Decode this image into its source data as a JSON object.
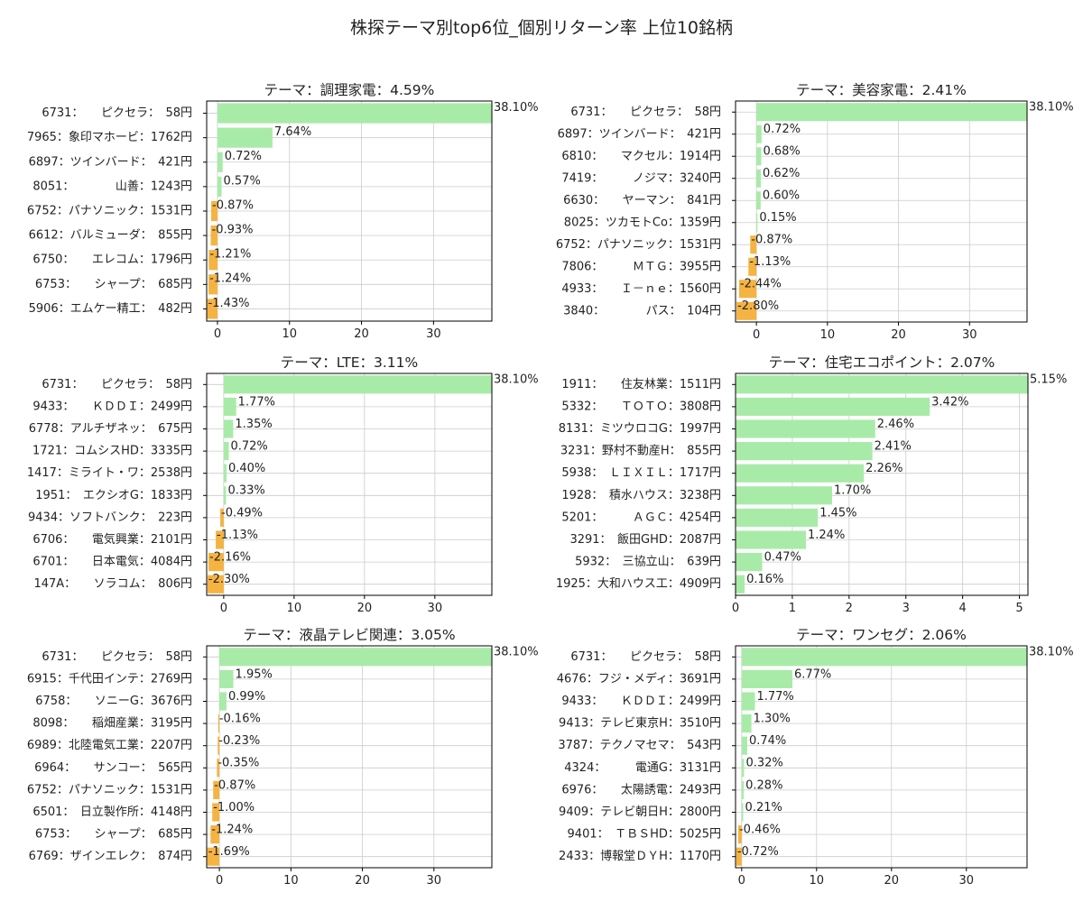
{
  "page_title": "株探テーマ別top6位_個別リターン率 上位10銘柄",
  "colors": {
    "positive": "#a8eba8",
    "negative": "#f5b342",
    "grid": "#cccccc",
    "axis": "#000000"
  },
  "chart_data": [
    {
      "type": "bar",
      "orientation": "horizontal",
      "title": "テーマ：調理家電：4.59%",
      "categories": [
        "6731：　　ピクセラ：　58円",
        "7965：象印マホービ：1762円",
        "6897：ツインバード：　421円",
        "8051：　　　　山善：1243円",
        "6752：パナソニック：1531円",
        "6612：バルミューダ：　855円",
        "6750：　　エレコム：1796円",
        "6753：　　シャープ：　685円",
        "5906：エムケー精工：　482円"
      ],
      "values": [
        38.1,
        7.64,
        0.72,
        0.57,
        -0.87,
        -0.93,
        -1.21,
        -1.24,
        -1.43
      ],
      "value_labels": [
        "38.10%",
        "7.64%",
        "0.72%",
        "0.57%",
        "-0.87%",
        "-0.93%",
        "-1.21%",
        "-1.24%",
        "-1.43%"
      ],
      "xlim": [
        -1.5,
        38.1
      ],
      "xticks": [
        0,
        10,
        20,
        30
      ],
      "grid": true
    },
    {
      "type": "bar",
      "orientation": "horizontal",
      "title": "テーマ：美容家電：2.41%",
      "categories": [
        "6731：　　ピクセラ：　58円",
        "6897：ツインバード：　421円",
        "6810：　　マクセル：1914円",
        "7419：　　　ノジマ：3240円",
        "6630：　　ヤーマン：　841円",
        "8025：ツカモトCo：1359円",
        "6752：パナソニック：1531円",
        "7806：　　　ＭＴＧ：3955円",
        "4933：　　Ｉ－ｎｅ：1560円",
        "3840：　　　　パス：　104円"
      ],
      "values": [
        38.1,
        0.72,
        0.68,
        0.62,
        0.6,
        0.15,
        -0.87,
        -1.13,
        -2.44,
        -2.8
      ],
      "value_labels": [
        "38.10%",
        "0.72%",
        "0.68%",
        "0.62%",
        "0.60%",
        "0.15%",
        "-0.87%",
        "-1.13%",
        "-2.44%",
        "-2.80%"
      ],
      "xlim": [
        -2.94,
        38.1
      ],
      "xticks": [
        0,
        10,
        20,
        30
      ],
      "grid": true
    },
    {
      "type": "bar",
      "orientation": "horizontal",
      "title": "テーマ：LTE：3.11%",
      "categories": [
        "6731：　　ピクセラ：　58円",
        "9433：　　ＫＤＤＩ：2499円",
        "6778：アルチザネッ：　675円",
        "1721：コムシスHD：3335円",
        "1417：ミライト・ワ：2538円",
        "1951：　エクシオG：1833円",
        "9434：ソフトバンク：　223円",
        "6706：　　電気興業：2101円",
        "6701：　　日本電気：4084円",
        "147A：　　ソラコム：　806円"
      ],
      "values": [
        38.1,
        1.77,
        1.35,
        0.72,
        0.4,
        0.33,
        -0.49,
        -1.13,
        -2.16,
        -2.3
      ],
      "value_labels": [
        "38.10%",
        "1.77%",
        "1.35%",
        "0.72%",
        "0.40%",
        "0.33%",
        "-0.49%",
        "-1.13%",
        "-2.16%",
        "-2.30%"
      ],
      "xlim": [
        -2.42,
        38.1
      ],
      "xticks": [
        0,
        10,
        20,
        30
      ],
      "grid": true
    },
    {
      "type": "bar",
      "orientation": "horizontal",
      "title": "テーマ：住宅エコポイント：2.07%",
      "categories": [
        "1911：　　住友林業：1511円",
        "5332：　　ＴＯＴＯ：3808円",
        "8131：ミツウロコG：1997円",
        "3231：野村不動産H：　855円",
        "5938：　ＬＩＸＩＬ：1717円",
        "1928：　積水ハウス：3238円",
        "5201：　　　ＡＧＣ：4254円",
        "3291：　飯田GHD：2087円",
        "5932：　三協立山：　639円",
        "1925：大和ハウス工：4909円"
      ],
      "values": [
        5.15,
        3.42,
        2.46,
        2.41,
        2.26,
        1.7,
        1.45,
        1.24,
        0.47,
        0.16
      ],
      "value_labels": [
        "5.15%",
        "3.42%",
        "2.46%",
        "2.41%",
        "2.26%",
        "1.70%",
        "1.45%",
        "1.24%",
        "0.47%",
        "0.16%"
      ],
      "xlim": [
        0,
        5.15
      ],
      "xticks": [
        0,
        1,
        2,
        3,
        4,
        5
      ],
      "grid": true
    },
    {
      "type": "bar",
      "orientation": "horizontal",
      "title": "テーマ：液晶テレビ関連：3.05%",
      "categories": [
        "6731：　　ピクセラ：　58円",
        "6915：千代田インテ：2769円",
        "6758：　　ソニーG：3676円",
        "8098：　　稲畑産業：3195円",
        "6989：北陸電気工業：2207円",
        "6964：　　サンコー：　565円",
        "6752：パナソニック：1531円",
        "6501：　日立製作所：4148円",
        "6753：　　シャープ：　685円",
        "6769：ザインエレク：　874円"
      ],
      "values": [
        38.1,
        1.95,
        0.99,
        -0.16,
        -0.23,
        -0.35,
        -0.87,
        -1.0,
        -1.24,
        -1.69
      ],
      "value_labels": [
        "38.10%",
        "1.95%",
        "0.99%",
        "-0.16%",
        "-0.23%",
        "-0.35%",
        "-0.87%",
        "-1.00%",
        "-1.24%",
        "-1.69%"
      ],
      "xlim": [
        -1.78,
        38.1
      ],
      "xticks": [
        0,
        10,
        20,
        30
      ],
      "grid": true
    },
    {
      "type": "bar",
      "orientation": "horizontal",
      "title": "テーマ：ワンセグ：2.06%",
      "categories": [
        "6731：　　ピクセラ：　58円",
        "4676：フジ・メディ：3691円",
        "9433：　　ＫＤＤＩ：2499円",
        "9413：テレビ東京H：3510円",
        "3787：テクノマセマ：　543円",
        "4324：　　　電通G：3131円",
        "6976：　　太陽誘電：2493円",
        "9409：テレビ朝日H：2800円",
        "9401：　ＴＢＳHD：5025円",
        "2433：博報堂ＤＹH：1170円"
      ],
      "values": [
        38.1,
        6.77,
        1.77,
        1.3,
        0.74,
        0.32,
        0.28,
        0.21,
        -0.46,
        -0.72
      ],
      "value_labels": [
        "38.10%",
        "6.77%",
        "1.77%",
        "1.30%",
        "0.74%",
        "0.32%",
        "0.28%",
        "0.21%",
        "-0.46%",
        "-0.72%"
      ],
      "xlim": [
        -0.82,
        38.1
      ],
      "xticks": [
        0,
        10,
        20,
        30
      ],
      "grid": true
    }
  ]
}
